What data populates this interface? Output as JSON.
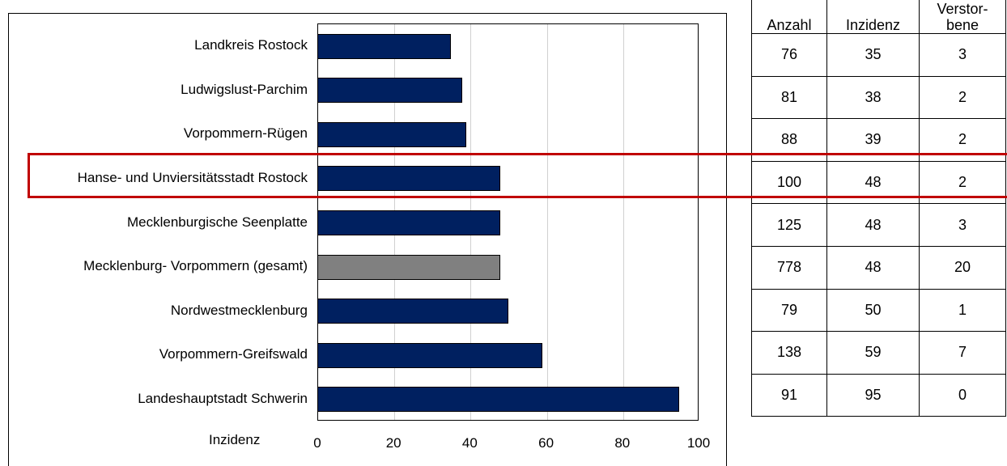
{
  "chart_data": {
    "type": "bar",
    "orientation": "horizontal",
    "categories": [
      "Landkreis Rostock",
      "Ludwigslust-Parchim",
      "Vorpommern-Rügen",
      "Hanse- und Unviersitätsstadt Rostock",
      "Mecklenburgische Seenplatte",
      "Mecklenburg- Vorpommern (gesamt)",
      "Nordwestmecklenburg",
      "Vorpommern-Greifswald",
      "Landeshauptstadt Schwerin"
    ],
    "values": [
      35,
      38,
      39,
      48,
      48,
      48,
      50,
      59,
      95
    ],
    "bar_colors": [
      "#002060",
      "#002060",
      "#002060",
      "#002060",
      "#002060",
      "#808080",
      "#002060",
      "#002060",
      "#002060"
    ],
    "xlabel": "Inzidenz",
    "xlim": [
      0,
      100
    ],
    "xticks": [
      "0",
      "20",
      "40",
      "60",
      "80",
      "100"
    ],
    "grid": "vertical",
    "highlighted_category": "Hanse- und Unviersitätsstadt Rostock",
    "highlight_color": "#c00000"
  },
  "table": {
    "headers": [
      "Anzahl",
      "Inzidenz",
      "Verstor-\nbene"
    ],
    "rows": [
      [
        "76",
        "35",
        "3"
      ],
      [
        "81",
        "38",
        "2"
      ],
      [
        "88",
        "39",
        "2"
      ],
      [
        "100",
        "48",
        "2"
      ],
      [
        "125",
        "48",
        "3"
      ],
      [
        "778",
        "48",
        "20"
      ],
      [
        "79",
        "50",
        "1"
      ],
      [
        "138",
        "59",
        "7"
      ],
      [
        "91",
        "95",
        "0"
      ]
    ]
  }
}
